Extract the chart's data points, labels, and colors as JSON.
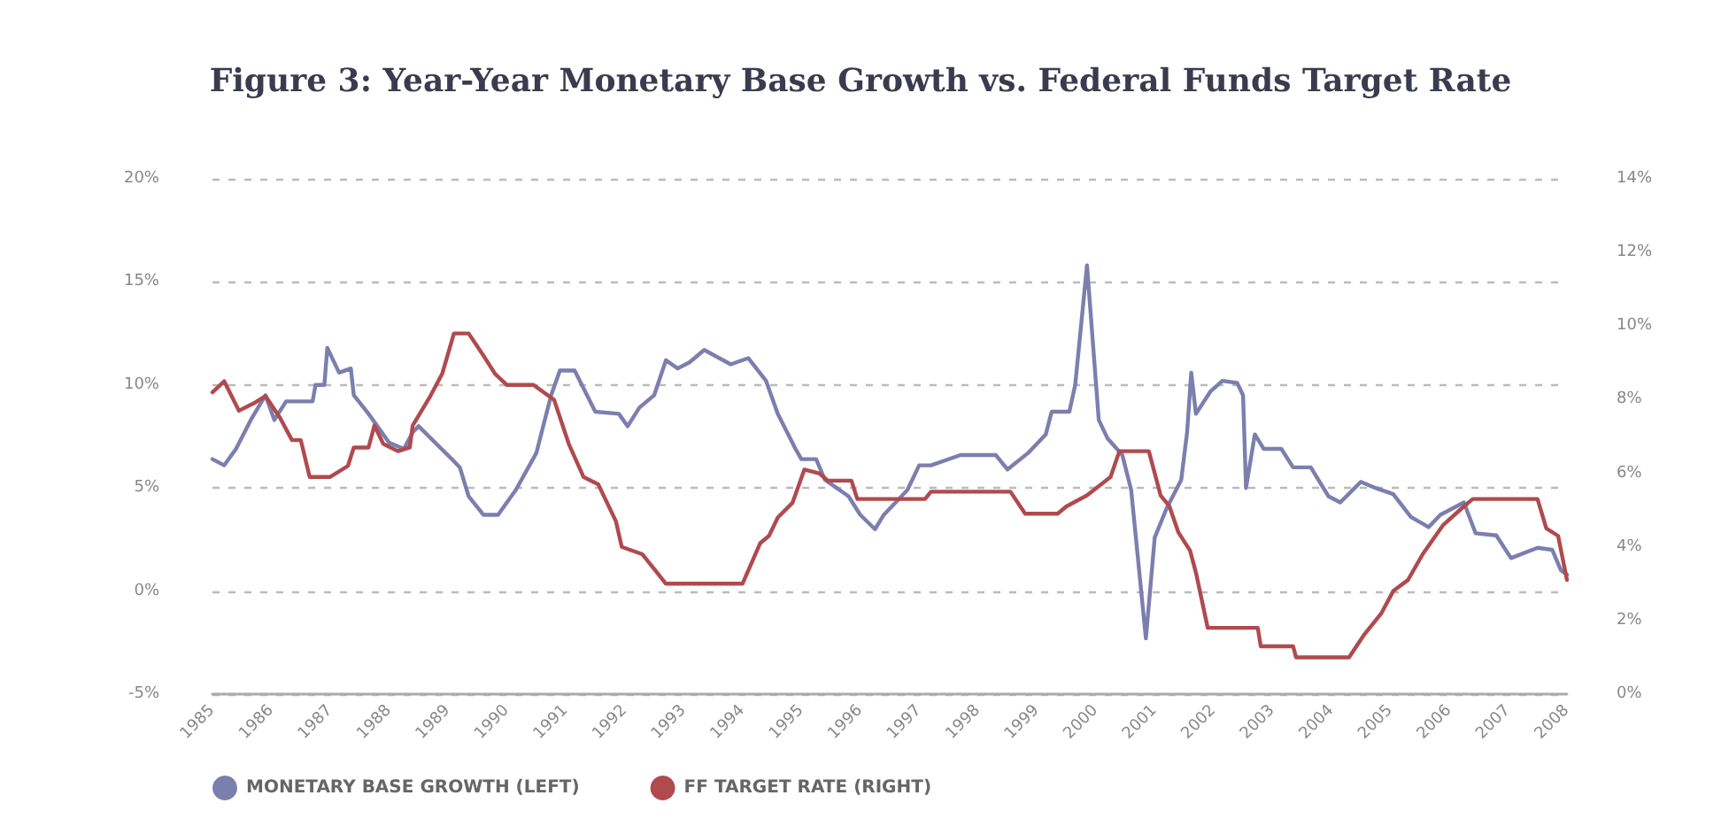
{
  "chart_data": {
    "type": "line",
    "title": "Figure 3: Year-Year Monetary Base Growth vs. Federal Funds Target Rate",
    "xlim": [
      1985,
      2008
    ],
    "xticks": [
      1985,
      1986,
      1987,
      1988,
      1989,
      1990,
      1991,
      1992,
      1993,
      1994,
      1995,
      1996,
      1997,
      1998,
      1999,
      2000,
      2001,
      2002,
      2003,
      2004,
      2005,
      2006,
      2007,
      2008
    ],
    "ylim": [
      -5,
      20
    ],
    "yticks": [
      {
        "value": -5,
        "label": "-5%"
      },
      {
        "value": 0,
        "label": "0%"
      },
      {
        "value": 5,
        "label": "5%"
      },
      {
        "value": 10,
        "label": "10%"
      },
      {
        "value": 15,
        "label": "15%"
      },
      {
        "value": 20,
        "label": "20%"
      }
    ],
    "y2lim": [
      0,
      14
    ],
    "y2ticks": [
      {
        "value": 0,
        "label": "0%"
      },
      {
        "value": 2,
        "label": "2%"
      },
      {
        "value": 4,
        "label": "4%"
      },
      {
        "value": 6,
        "label": "6%"
      },
      {
        "value": 8,
        "label": "8%"
      },
      {
        "value": 10,
        "label": "10%"
      },
      {
        "value": 12,
        "label": "12%"
      },
      {
        "value": 14,
        "label": "14%"
      }
    ],
    "grid": "y",
    "legend": "bottom left",
    "marker": "none",
    "line_style": "solid",
    "series": [
      {
        "name": "MONETARY BASE GROWTH (LEFT)",
        "color": "#7b7fae",
        "x": [
          1985,
          1985.2,
          1985.4,
          1985.65,
          1985.9,
          1986.05,
          1986.25,
          1986.7,
          1986.75,
          1986.9,
          1986.95,
          1987.15,
          1987.35,
          1987.4,
          1987.65,
          1988,
          1988.25,
          1988.4,
          1988.5,
          1989.1,
          1989.2,
          1989.35,
          1989.6,
          1989.85,
          1990.15,
          1990.5,
          1990.75,
          1990.9,
          1991.15,
          1991.5,
          1991.9,
          1992.05,
          1992.25,
          1992.5,
          1992.7,
          1992.9,
          1993.1,
          1993.35,
          1993.8,
          1994.1,
          1994.4,
          1994.6,
          1994.9,
          1995,
          1995.25,
          1995.4,
          1995.8,
          1996,
          1996.25,
          1996.4,
          1996.8,
          1997,
          1997.2,
          1997.7,
          1998.3,
          1998.5,
          1998.85,
          1999.15,
          1999.25,
          1999.55,
          1999.65,
          1999.85,
          2000.05,
          2000.2,
          2000.45,
          2000.6,
          2000.85,
          2001,
          2001.2,
          2001.45,
          2001.55,
          2001.62,
          2001.7,
          2001.95,
          2002.15,
          2002.4,
          2002.5,
          2002.55,
          2002.7,
          2002.85,
          2003.15,
          2003.35,
          2003.65,
          2003.95,
          2004.15,
          2004.5,
          2004.75,
          2005.05,
          2005.35,
          2005.65,
          2005.85,
          2006.25,
          2006.45,
          2006.8,
          2007.05,
          2007.5,
          2007.75,
          2007.9,
          2008
        ],
        "values": [
          6.4,
          6.1,
          6.9,
          8.3,
          9.5,
          8.3,
          9.2,
          9.2,
          10,
          10,
          11.8,
          10.6,
          10.8,
          9.5,
          8.6,
          7.2,
          6.9,
          7.7,
          8,
          6.3,
          6,
          4.6,
          3.7,
          3.7,
          4.9,
          6.7,
          9.5,
          10.7,
          10.7,
          8.7,
          8.6,
          8,
          8.9,
          9.5,
          11.2,
          10.8,
          11.1,
          11.7,
          11,
          11.3,
          10.2,
          8.6,
          6.9,
          6.4,
          6.4,
          5.4,
          4.6,
          3.7,
          3,
          3.7,
          4.9,
          6.1,
          6.1,
          6.6,
          6.6,
          5.9,
          6.7,
          7.6,
          8.7,
          8.7,
          10,
          15.8,
          8.3,
          7.4,
          6.6,
          4.9,
          -2.3,
          2.6,
          4,
          5.4,
          7.7,
          10.6,
          8.6,
          9.7,
          10.2,
          10.1,
          9.5,
          5,
          7.6,
          6.9,
          6.9,
          6,
          6,
          4.6,
          4.3,
          5.3,
          5,
          4.7,
          3.6,
          3.1,
          3.7,
          4.3,
          2.8,
          2.7,
          1.6,
          2.1,
          2,
          1,
          0.8
        ]
      },
      {
        "name": "FF TARGET RATE (RIGHT)",
        "color": "#b04a4e",
        "axis": "y2",
        "x": [
          1985,
          1985.2,
          1985.45,
          1985.7,
          1985.9,
          1986.15,
          1986.35,
          1986.5,
          1986.65,
          1987,
          1987.3,
          1987.4,
          1987.65,
          1987.75,
          1987.9,
          1988.15,
          1988.35,
          1988.4,
          1988.7,
          1988.9,
          1989.1,
          1989.35,
          1989.6,
          1989.8,
          1990,
          1990.45,
          1990.8,
          1991.05,
          1991.3,
          1991.55,
          1991.85,
          1991.95,
          1992.3,
          1992.5,
          1992.7,
          1994,
          1994.3,
          1994.45,
          1994.6,
          1994.85,
          1995.05,
          1995.3,
          1995.45,
          1995.85,
          1995.95,
          1997.1,
          1997.2,
          1998.55,
          1998.8,
          1999.35,
          1999.5,
          1999.85,
          2000.25,
          2000.4,
          2000.9,
          2001.1,
          2001.25,
          2001.4,
          2001.6,
          2001.7,
          2001.9,
          2002.75,
          2002.8,
          2003.35,
          2003.4,
          2004.3,
          2004.55,
          2004.85,
          2005.05,
          2005.3,
          2005.55,
          2005.9,
          2006.25,
          2006.4,
          2007.5,
          2007.65,
          2007.85,
          2008
        ],
        "values": [
          8.2,
          8.5,
          7.7,
          7.9,
          8.1,
          7.5,
          6.9,
          6.9,
          5.9,
          5.9,
          6.2,
          6.7,
          6.7,
          7.3,
          6.8,
          6.6,
          6.7,
          7.3,
          8.1,
          8.7,
          9.8,
          9.8,
          9.2,
          8.7,
          8.4,
          8.4,
          8,
          6.8,
          5.9,
          5.7,
          4.7,
          4,
          3.8,
          3.4,
          3,
          3,
          4.1,
          4.3,
          4.8,
          5.2,
          6.1,
          6,
          5.8,
          5.8,
          5.3,
          5.3,
          5.5,
          5.5,
          4.9,
          4.9,
          5.1,
          5.4,
          5.9,
          6.6,
          6.6,
          5.4,
          5.1,
          4.4,
          3.9,
          3.3,
          1.8,
          1.8,
          1.3,
          1.3,
          1,
          1,
          1.6,
          2.2,
          2.8,
          3.1,
          3.8,
          4.6,
          5.1,
          5.3,
          5.3,
          4.5,
          4.3,
          3.1
        ]
      }
    ]
  }
}
